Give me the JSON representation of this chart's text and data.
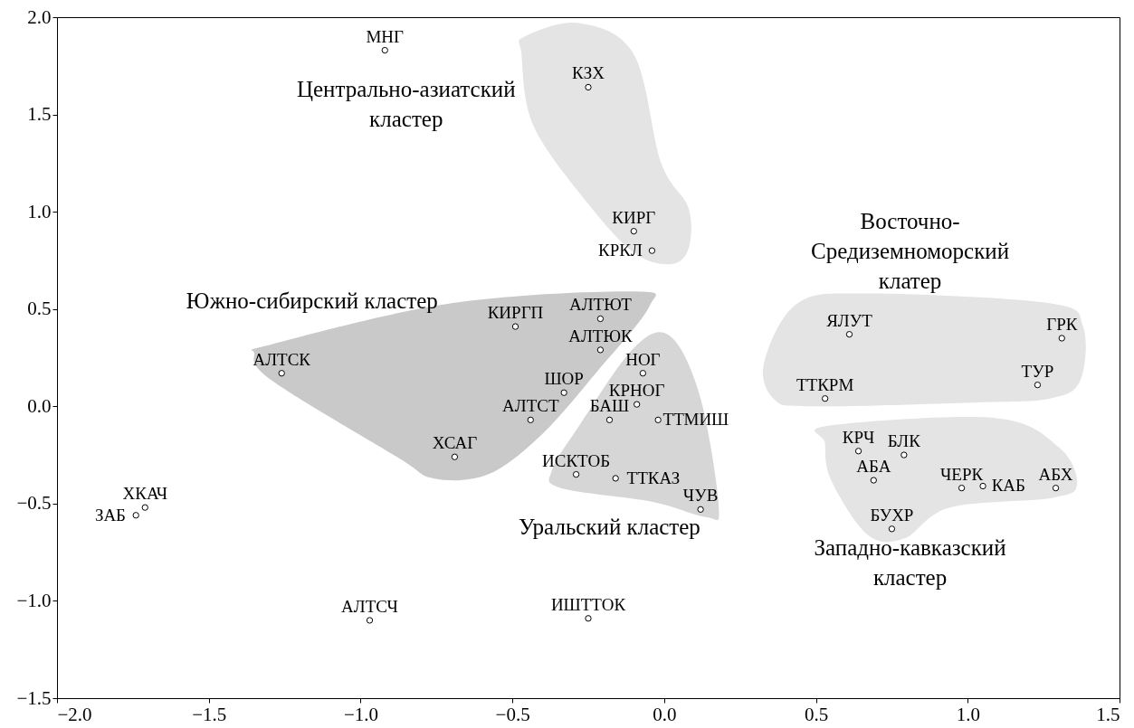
{
  "chart_data": {
    "type": "scatter",
    "x": [
      -0.92,
      -0.25,
      -0.1,
      -0.04,
      -0.49,
      -0.21,
      -0.21,
      -1.26,
      -0.33,
      -0.07,
      -0.09,
      -0.18,
      -0.44,
      -0.02,
      -0.69,
      -0.29,
      -0.16,
      0.12,
      -1.74,
      -1.71,
      -0.97,
      -0.25,
      0.61,
      1.31,
      0.53,
      1.23,
      0.64,
      0.79,
      0.69,
      0.98,
      1.05,
      1.29,
      0.75
    ],
    "series": [
      {
        "color": "#000000",
        "values": [
          1.83,
          1.64,
          0.9,
          0.8,
          0.41,
          0.45,
          0.29,
          0.17,
          0.07,
          0.17,
          0.01,
          -0.07,
          -0.07,
          -0.07,
          -0.26,
          -0.35,
          -0.37,
          -0.53,
          -0.56,
          -0.52,
          -1.1,
          -1.09,
          0.37,
          0.35,
          0.04,
          0.11,
          -0.23,
          -0.25,
          -0.38,
          -0.42,
          -0.41,
          -0.42,
          -0.63
        ]
      }
    ],
    "xlim": [
      -2.0,
      1.5
    ],
    "ylim": [
      -1.5,
      2.0
    ],
    "xticks": [
      {
        "value": -2,
        "label": "−2.0"
      },
      -1.5,
      {
        "value": -1,
        "label": "−1.0"
      },
      -0.5,
      {
        "value": 0,
        "label": "0.0"
      },
      0.5,
      {
        "value": 1,
        "label": "1.0"
      },
      1.5
    ],
    "yticks": [
      -1.5,
      {
        "value": -1,
        "label": "−1.0"
      },
      -0.5,
      {
        "value": 0,
        "label": "0.0"
      },
      0.5,
      {
        "value": 1,
        "label": "1.0"
      },
      1.5,
      {
        "value": 2,
        "label": "2.0"
      }
    ],
    "marker": "circle",
    "annotations": [
      {
        "text": "МНГ",
        "x": -0.92,
        "y": 1.83
      },
      {
        "text": "КЗХ",
        "x": -0.25,
        "y": 1.64
      },
      {
        "text": "КИРГ",
        "x": -0.1,
        "y": 0.9
      },
      {
        "text": "КРКЛ",
        "x": -0.04,
        "y": 0.8
      },
      {
        "text": "КИРГП",
        "x": -0.49,
        "y": 0.41
      },
      {
        "text": "АЛТЮТ",
        "x": -0.21,
        "y": 0.45
      },
      {
        "text": "АЛТЮК",
        "x": -0.21,
        "y": 0.29
      },
      {
        "text": "АЛТСК",
        "x": -1.26,
        "y": 0.17
      },
      {
        "text": "ШОР",
        "x": -0.33,
        "y": 0.07
      },
      {
        "text": "НОГ",
        "x": -0.07,
        "y": 0.17
      },
      {
        "text": "КРНОГ",
        "x": -0.09,
        "y": 0.01
      },
      {
        "text": "БАШ",
        "x": -0.18,
        "y": -0.07
      },
      {
        "text": "АЛТСТ",
        "x": -0.44,
        "y": -0.07
      },
      {
        "text": "ТТМИШ",
        "x": -0.02,
        "y": -0.07
      },
      {
        "text": "ХСАГ",
        "x": -0.69,
        "y": -0.26
      },
      {
        "text": "ИСКТОБ",
        "x": -0.29,
        "y": -0.35
      },
      {
        "text": "ТТКАЗ",
        "x": -0.16,
        "y": -0.37
      },
      {
        "text": "ЧУВ",
        "x": 0.12,
        "y": -0.53
      },
      {
        "text": "ХКАЧ",
        "x": -1.71,
        "y": -0.52
      },
      {
        "text": "ЗАБ",
        "x": -1.74,
        "y": -0.56
      },
      {
        "text": "АЛТСЧ",
        "x": -0.97,
        "y": -1.1
      },
      {
        "text": "ИШТТОК",
        "x": -0.25,
        "y": -1.09
      },
      {
        "text": "ЯЛУТ",
        "x": 0.61,
        "y": 0.37
      },
      {
        "text": "ГРК",
        "x": 1.31,
        "y": 0.35
      },
      {
        "text": "ТТКРМ",
        "x": 0.53,
        "y": 0.04
      },
      {
        "text": "ТУР",
        "x": 1.23,
        "y": 0.11
      },
      {
        "text": "КРЧ",
        "x": 0.64,
        "y": -0.23
      },
      {
        "text": "БЛК",
        "x": 0.79,
        "y": -0.25
      },
      {
        "text": "АБА",
        "x": 0.69,
        "y": -0.38
      },
      {
        "text": "ЧЕРК",
        "x": 0.98,
        "y": -0.42
      },
      {
        "text": "КАБ",
        "x": 1.05,
        "y": -0.41
      },
      {
        "text": "АБХ",
        "x": 1.29,
        "y": -0.42
      },
      {
        "text": "БУХР",
        "x": 0.75,
        "y": -0.63
      },
      "Центрально-азиатский\nкластер",
      "Южно-сибирский кластер",
      "Восточно-\nСредиземноморский\nклатер",
      "Уральский кластер",
      "Западно-кавказский\nкластер"
    ]
  }
}
